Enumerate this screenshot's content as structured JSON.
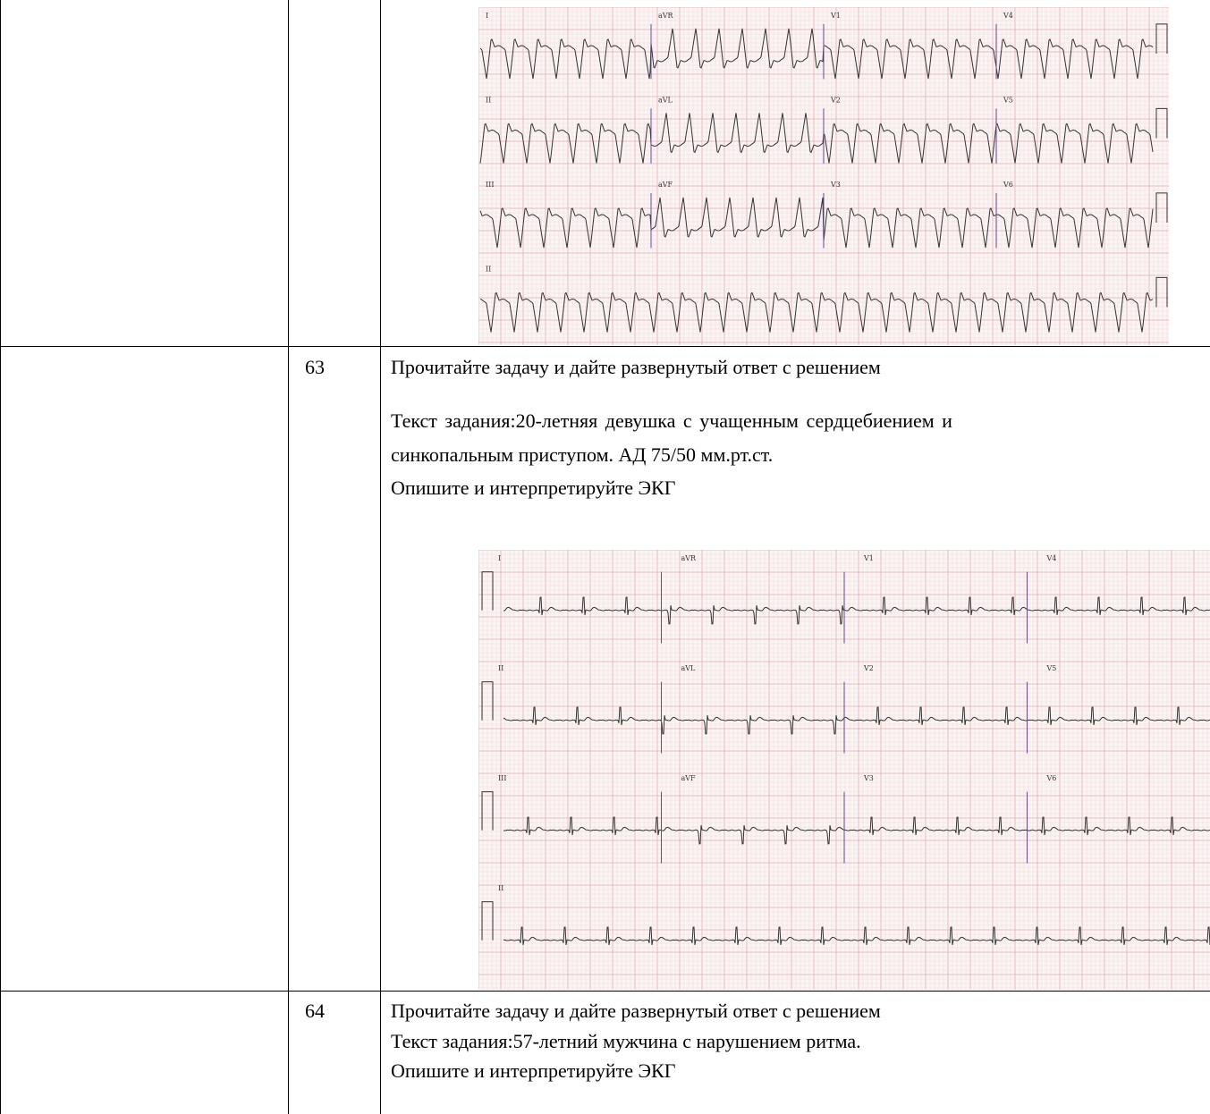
{
  "rows": [
    {
      "number": "",
      "ecg": {
        "leads": [
          [
            "I",
            "aVR",
            "V1",
            "V4"
          ],
          [
            "II",
            "aVL",
            "V2",
            "V5"
          ],
          [
            "III",
            "aVF",
            "V3",
            "V6"
          ],
          [
            "II"
          ]
        ],
        "pattern": "wide-complex-tachycardia"
      }
    },
    {
      "number": "63",
      "instruction": "Прочитайте задачу и дайте развернутый ответ с решением",
      "task_line1": "Текст задания:20-летняя девушка с учащенным сердцебиением и",
      "task_line2": "синкопальным приступом. АД 75/50 мм.рт.ст.",
      "task_line3": "Опишите и интерпретируйте ЭКГ",
      "ecg": {
        "leads": [
          [
            "I",
            "aVR",
            "V1",
            "V4"
          ],
          [
            "II",
            "aVL",
            "V2",
            "V5"
          ],
          [
            "III",
            "aVF",
            "V3",
            "V6"
          ],
          [
            "II"
          ]
        ],
        "pattern": "narrow-complex-low-voltage"
      }
    },
    {
      "number": "64",
      "instruction": "Прочитайте задачу и дайте развернутый ответ с решением",
      "task_line1": "Текст задания:57-летний мужчина с нарушением ритма.",
      "task_line2": "Опишите и интерпретируйте ЭКГ"
    }
  ]
}
